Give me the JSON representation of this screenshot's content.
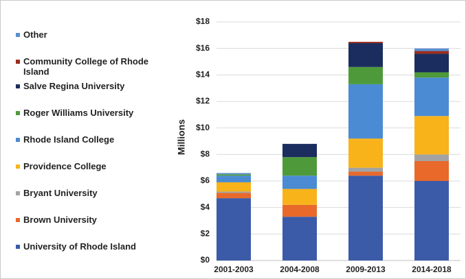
{
  "chart_data": {
    "type": "stacked_bar",
    "y_label": "Millions",
    "categories": [
      "2001-2003",
      "2004-2008",
      "2009-2013",
      "2014-2018"
    ],
    "series": [
      {
        "name": "University of Rhode Island",
        "color": "#3b5ba9",
        "values": [
          4.7,
          3.3,
          6.4,
          6.0
        ]
      },
      {
        "name": "Brown University",
        "color": "#e8692a",
        "values": [
          0.4,
          0.9,
          0.3,
          1.5
        ]
      },
      {
        "name": "Bryant University",
        "color": "#a3a3a3",
        "values": [
          0.1,
          0,
          0.3,
          0.5
        ]
      },
      {
        "name": "Providence College",
        "color": "#f8b31a",
        "values": [
          0.7,
          1.2,
          2.2,
          2.9
        ]
      },
      {
        "name": "Rhode Island College",
        "color": "#4a8bd3",
        "values": [
          0.5,
          1.0,
          4.1,
          2.9
        ]
      },
      {
        "name": "Roger Williams University",
        "color": "#4e9a3a",
        "values": [
          0.1,
          1.4,
          1.3,
          0.4
        ]
      },
      {
        "name": "Salve Regina University",
        "color": "#1b2d5e",
        "values": [
          0,
          1.0,
          1.8,
          1.4
        ]
      },
      {
        "name": "Community College of Rhode Island",
        "color": "#9c2b1a",
        "values": [
          0,
          0,
          0.1,
          0.2
        ]
      },
      {
        "name": "Other",
        "color": "#5b8fd1",
        "values": [
          0.1,
          0,
          0,
          0.2
        ]
      }
    ],
    "ylim": [
      0,
      18
    ],
    "yticks": [
      {
        "value": 0,
        "label": "$0"
      },
      {
        "value": 2,
        "label": "$2"
      },
      {
        "value": 4,
        "label": "$4"
      },
      {
        "value": 6,
        "label": "$6"
      },
      {
        "value": 8,
        "label": "$8"
      },
      {
        "value": 10,
        "label": "$10"
      },
      {
        "value": 12,
        "label": "$12"
      },
      {
        "value": 14,
        "label": "$14"
      },
      {
        "value": 16,
        "label": "$16"
      },
      {
        "value": 18,
        "label": "$18"
      }
    ],
    "grid": true
  }
}
